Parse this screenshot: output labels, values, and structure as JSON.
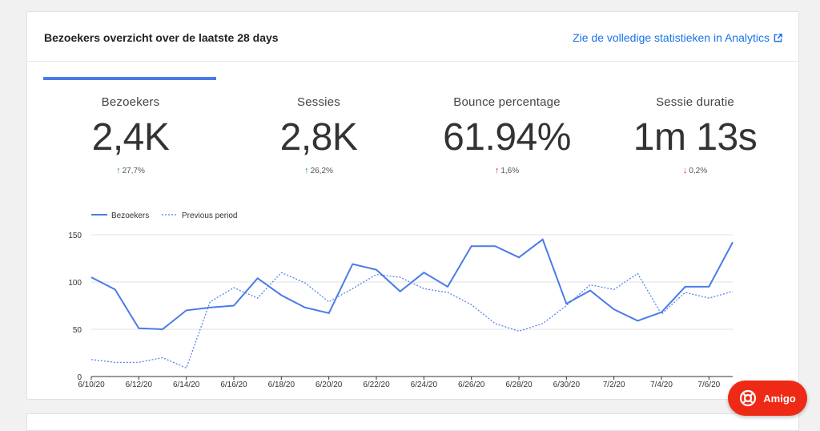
{
  "header": {
    "title": "Bezoekers overzicht over de laatste 28 days",
    "link_label": "Zie de volledige statistieken in Analytics"
  },
  "metrics": [
    {
      "label": "Bezoekers",
      "value": "2,4K",
      "change": "27,7%",
      "direction": "up",
      "color": "#1e9e4a"
    },
    {
      "label": "Sessies",
      "value": "2,8K",
      "change": "26,2%",
      "direction": "up",
      "color": "#1e9e4a"
    },
    {
      "label": "Bounce percentage",
      "value": "61.94%",
      "change": "1,6%",
      "direction": "up",
      "color": "#d93025"
    },
    {
      "label": "Sessie duratie",
      "value": "1m 13s",
      "change": "0,2%",
      "direction": "down",
      "color": "#d93025"
    }
  ],
  "chart_data": {
    "type": "line",
    "x": [
      "6/10/20",
      "6/11/20",
      "6/12/20",
      "6/13/20",
      "6/14/20",
      "6/15/20",
      "6/16/20",
      "6/17/20",
      "6/18/20",
      "6/19/20",
      "6/20/20",
      "6/21/20",
      "6/22/20",
      "6/23/20",
      "6/24/20",
      "6/25/20",
      "6/26/20",
      "6/27/20",
      "6/28/20",
      "6/29/20",
      "6/30/20",
      "7/1/20",
      "7/2/20",
      "7/3/20",
      "7/4/20",
      "7/5/20",
      "7/6/20",
      "7/7/20"
    ],
    "tick_labels": [
      "6/10/20",
      "6/12/20",
      "6/14/20",
      "6/16/20",
      "6/18/20",
      "6/20/20",
      "6/22/20",
      "6/24/20",
      "6/26/20",
      "6/28/20",
      "6/30/20",
      "7/2/20",
      "7/4/20",
      "7/6/20"
    ],
    "series": [
      {
        "name": "Bezoekers",
        "style": "solid",
        "color": "#4a7be8",
        "values": [
          105,
          92,
          51,
          50,
          70,
          73,
          75,
          104,
          86,
          73,
          67,
          119,
          113,
          90,
          110,
          95,
          138,
          138,
          126,
          145,
          77,
          91,
          71,
          59,
          68,
          95,
          95,
          142
        ]
      },
      {
        "name": "Previous period",
        "style": "dashed",
        "color": "#4a7be8",
        "values": [
          18,
          15,
          15,
          20,
          9,
          79,
          94,
          83,
          110,
          99,
          79,
          93,
          108,
          105,
          93,
          89,
          76,
          56,
          48,
          56,
          75,
          97,
          92,
          109,
          66,
          89,
          83,
          90
        ]
      }
    ],
    "ylim": [
      0,
      150
    ],
    "yticks": [
      0,
      50,
      100,
      150
    ],
    "legend_position": "top-left",
    "grid": true
  },
  "amigo": {
    "label": "Amigo"
  }
}
